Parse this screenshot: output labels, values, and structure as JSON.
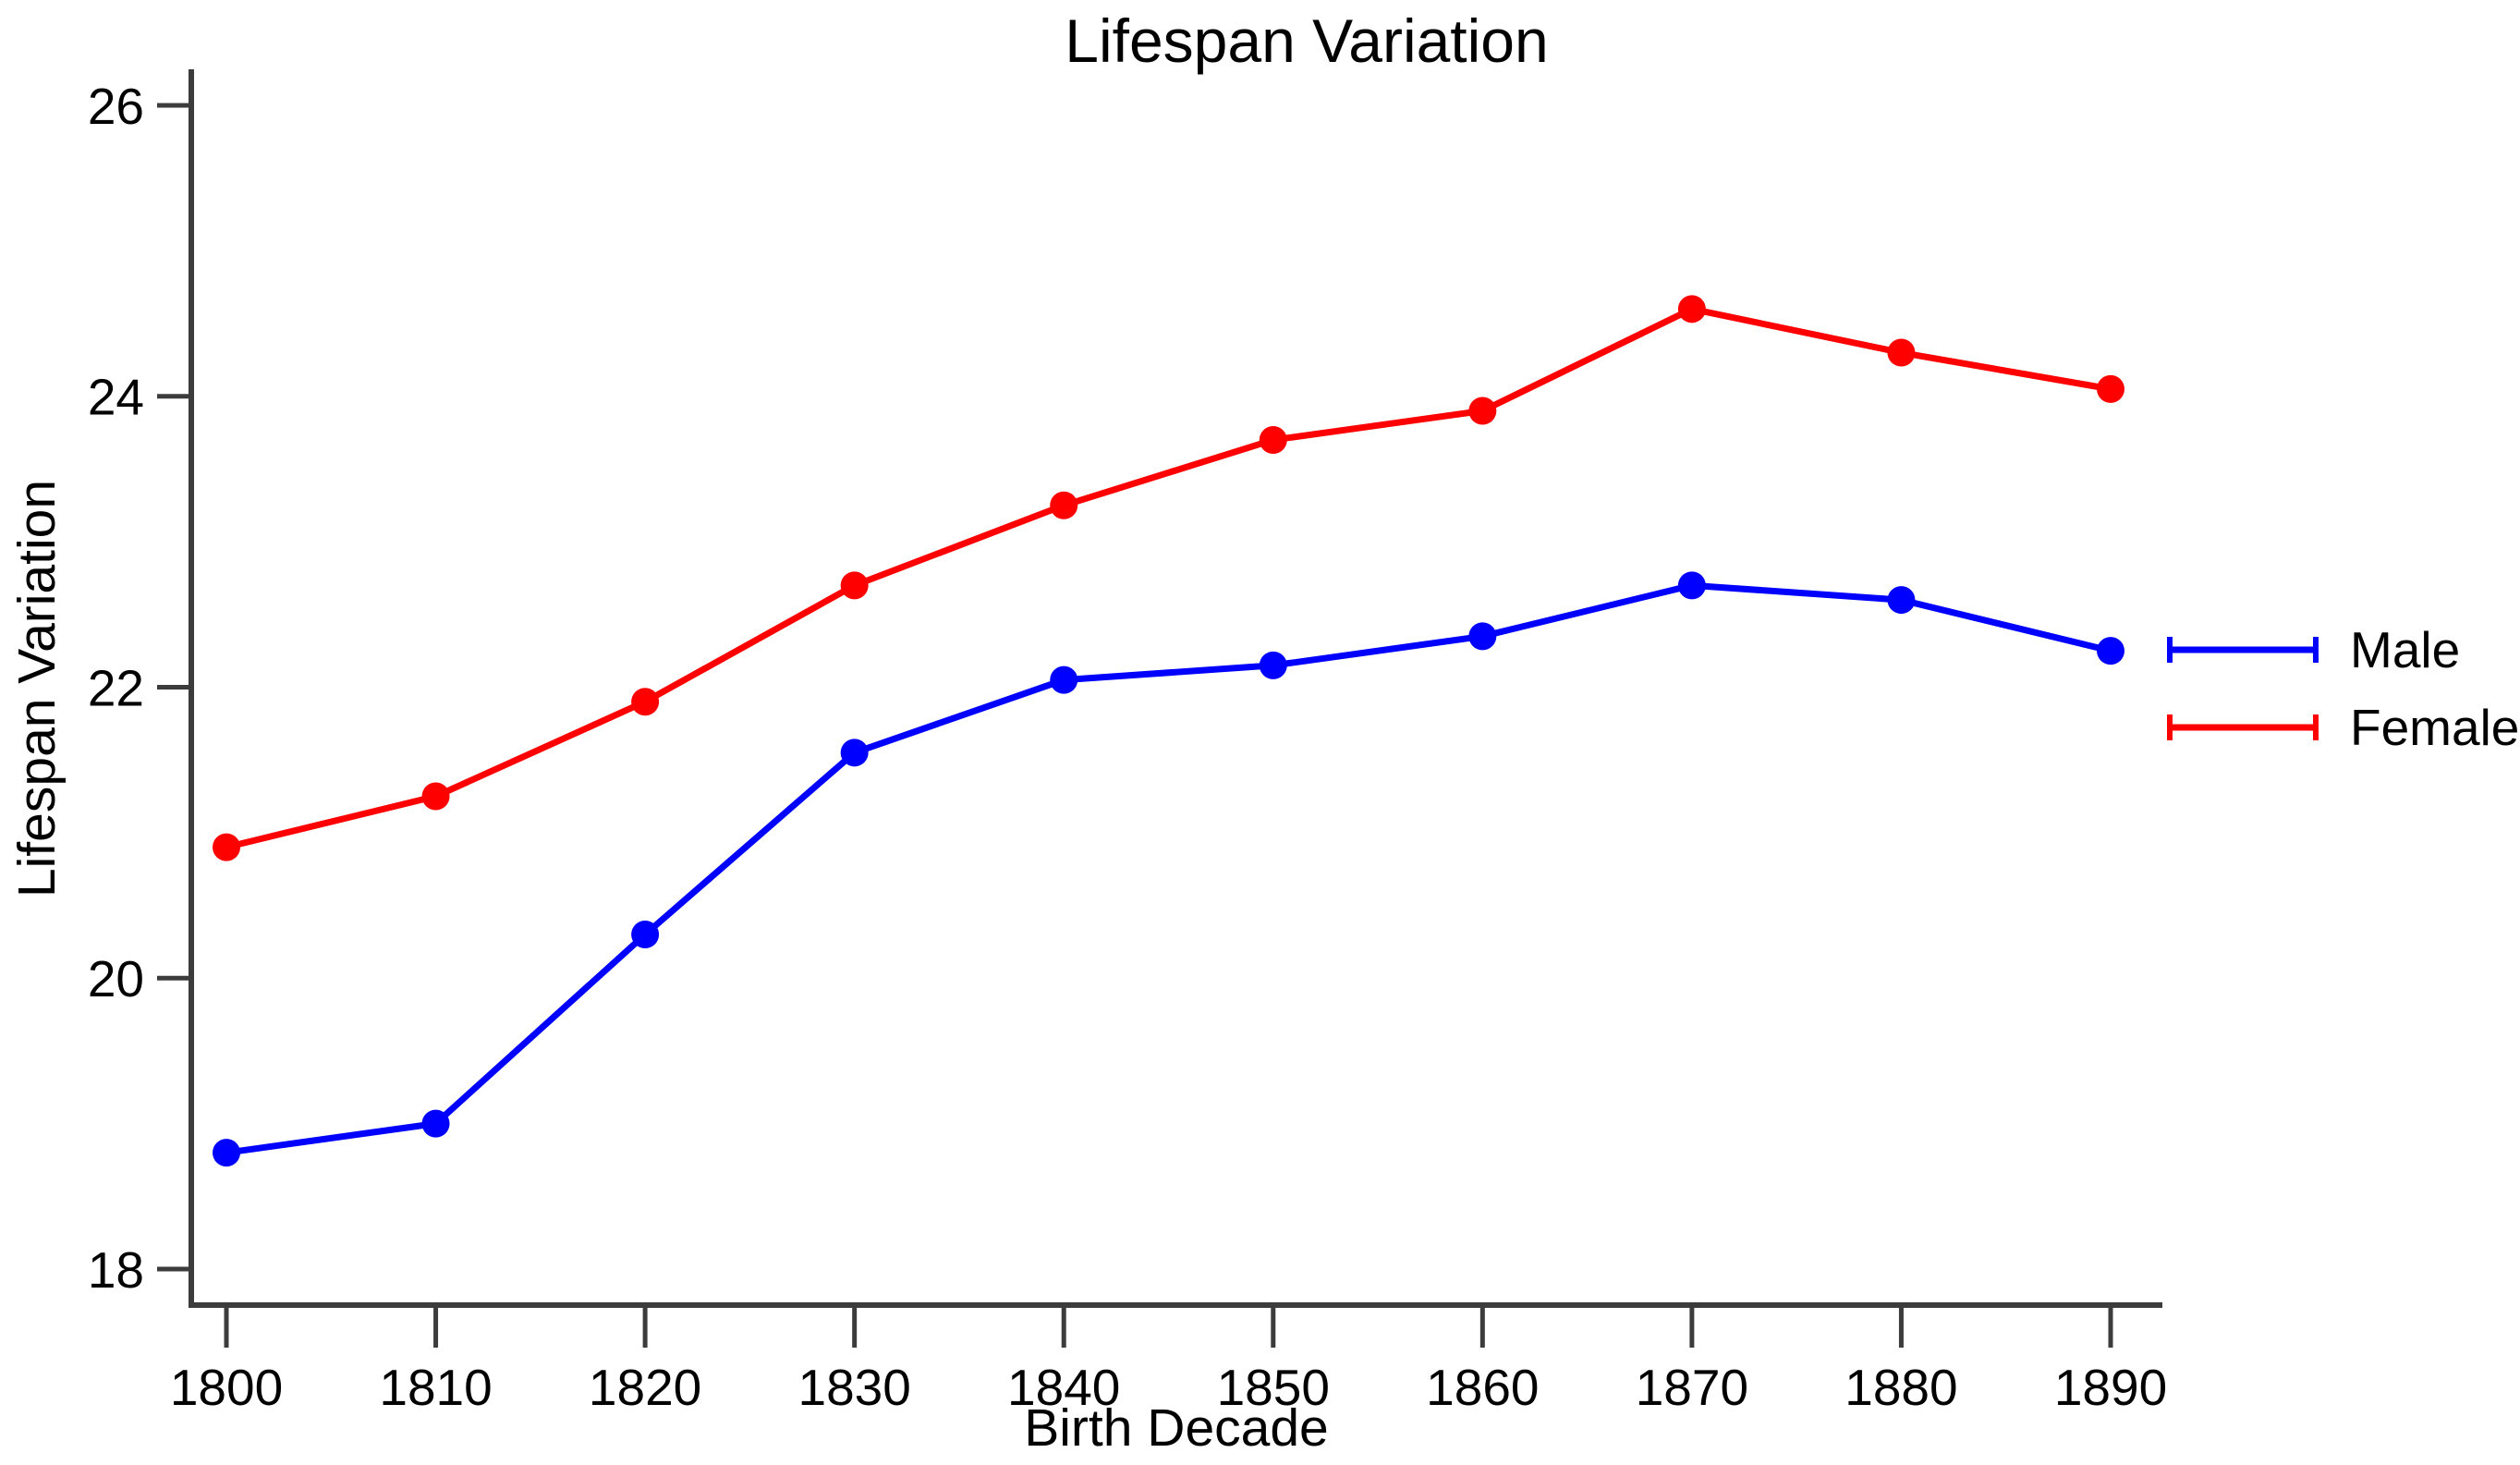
{
  "chart_data": {
    "type": "line",
    "title": "Lifespan Variation",
    "xlabel": "Birth Decade",
    "ylabel": "Lifespan Variation",
    "x": [
      1800,
      1810,
      1820,
      1830,
      1840,
      1850,
      1860,
      1870,
      1880,
      1890
    ],
    "series": [
      {
        "name": "Male",
        "color": "#0000ff",
        "values": [
          18.8,
          19.0,
          20.3,
          21.55,
          22.05,
          22.15,
          22.35,
          22.7,
          22.6,
          22.25
        ]
      },
      {
        "name": "Female",
        "color": "#ff0000",
        "values": [
          20.9,
          21.25,
          21.9,
          22.7,
          23.25,
          23.7,
          23.9,
          24.6,
          24.3,
          24.05
        ]
      }
    ],
    "yticks": [
      18,
      20,
      22,
      24,
      26
    ],
    "xticks": [
      1800,
      1810,
      1820,
      1830,
      1840,
      1850,
      1860,
      1870,
      1880,
      1890
    ],
    "xlim": [
      1800,
      1890
    ],
    "ylim": [
      18,
      26
    ],
    "grid": false,
    "marker": "circle",
    "legend_position": "right",
    "background_color": "#ffffff",
    "axis_color": "#3c3c3c",
    "text_color": "#000000"
  }
}
